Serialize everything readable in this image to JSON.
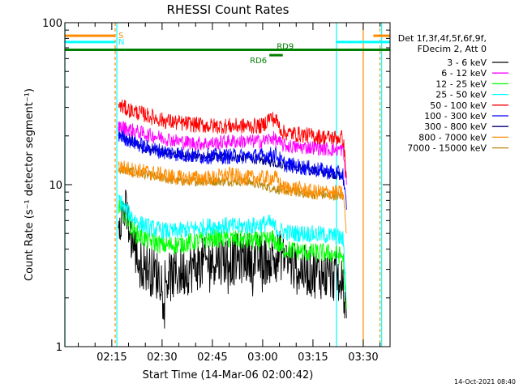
{
  "chart_data": {
    "type": "line",
    "title": "RHESSI Count Rates",
    "xlabel": "Start Time (14-Mar-06 02:00:42)",
    "ylabel": "Count Rate (s⁻¹ detector segment⁻¹)",
    "y_scale": "log",
    "ylim": [
      1,
      100
    ],
    "y_ticks": [
      "1",
      "10",
      "100"
    ],
    "xlim": [
      "02:01:00",
      "03:38:00"
    ],
    "x_ticks": [
      "02:15",
      "02:30",
      "02:45",
      "03:00",
      "03:15",
      "03:30"
    ],
    "legend_header": [
      "Det 1f,3f,4f,5f,6f,9f,",
      "FDecim 2, Att 0"
    ],
    "legend_position": "right",
    "footer_date": "14-Oct-2021 08:40",
    "series": [
      {
        "name": "3 - 6 keV",
        "color": "#000000",
        "x": [
          "02:17",
          "02:19",
          "02:21",
          "02:23",
          "02:27",
          "02:31",
          "02:36",
          "02:41",
          "02:46",
          "02:51",
          "02:56",
          "03:00",
          "03:03",
          "03:06",
          "03:10",
          "03:14",
          "03:18",
          "03:22",
          "03:24",
          "03:25"
        ],
        "y": [
          6.5,
          6.8,
          4.6,
          3.4,
          2.9,
          2.6,
          2.9,
          3.2,
          3.5,
          3.4,
          3.6,
          3.4,
          3.5,
          3.7,
          3.0,
          2.9,
          2.8,
          2.7,
          2.4,
          1.5
        ]
      },
      {
        "name": "6 - 12 keV",
        "color": "#ff00ff",
        "x": [
          "02:17",
          "02:20",
          "02:25",
          "02:30",
          "02:35",
          "02:40",
          "02:45",
          "02:50",
          "02:55",
          "03:00",
          "03:03",
          "03:06",
          "03:10",
          "03:15",
          "03:20",
          "03:24",
          "03:25"
        ],
        "y": [
          23.0,
          22.0,
          20.5,
          19.5,
          18.5,
          18.0,
          18.0,
          18.5,
          18.5,
          18.5,
          19.5,
          17.5,
          17.0,
          17.0,
          16.5,
          16.5,
          10.0
        ]
      },
      {
        "name": "12 - 25 keV",
        "color": "#00ff00",
        "x": [
          "02:17",
          "02:19",
          "02:22",
          "02:26",
          "02:31",
          "02:36",
          "02:41",
          "02:46",
          "02:51",
          "02:56",
          "03:00",
          "03:03",
          "03:06",
          "03:10",
          "03:14",
          "03:18",
          "03:22",
          "03:24",
          "03:25"
        ],
        "y": [
          7.5,
          6.5,
          5.0,
          4.5,
          4.2,
          4.3,
          4.5,
          4.7,
          4.6,
          4.5,
          4.5,
          4.6,
          4.0,
          3.9,
          3.8,
          3.8,
          3.7,
          3.6,
          1.7
        ]
      },
      {
        "name": "25 - 50 keV",
        "color": "#00ffff",
        "x": [
          "02:17",
          "02:19",
          "02:23",
          "02:28",
          "02:33",
          "02:38",
          "02:43",
          "02:48",
          "02:53",
          "02:58",
          "03:02",
          "03:05",
          "03:09",
          "03:13",
          "03:18",
          "03:22",
          "03:24",
          "03:25"
        ],
        "y": [
          8.3,
          7.0,
          5.8,
          5.3,
          5.1,
          5.3,
          5.5,
          5.6,
          5.5,
          5.6,
          5.8,
          5.2,
          5.0,
          5.0,
          4.9,
          4.8,
          4.6,
          2.0
        ]
      },
      {
        "name": "50 - 100 keV",
        "color": "#ff0000",
        "x": [
          "02:17",
          "02:20",
          "02:25",
          "02:30",
          "02:35",
          "02:40",
          "02:45",
          "02:50",
          "02:55",
          "03:00",
          "03:02",
          "03:04",
          "03:06",
          "03:10",
          "03:15",
          "03:20",
          "03:24",
          "03:25"
        ],
        "y": [
          31.0,
          29.0,
          27.0,
          25.0,
          24.0,
          23.5,
          23.0,
          23.0,
          23.0,
          23.0,
          26.0,
          25.0,
          21.0,
          20.5,
          20.0,
          19.5,
          19.5,
          11.0
        ]
      },
      {
        "name": "100 - 300 keV",
        "color": "#0000ff",
        "x": [
          "02:17",
          "02:20",
          "02:25",
          "02:30",
          "02:35",
          "02:40",
          "02:45",
          "02:50",
          "02:55",
          "03:00",
          "03:04",
          "03:06",
          "03:10",
          "03:15",
          "03:20",
          "03:24",
          "03:25"
        ],
        "y": [
          20.5,
          19.0,
          17.0,
          16.0,
          15.5,
          15.0,
          15.0,
          15.0,
          15.0,
          15.0,
          15.5,
          13.5,
          13.0,
          12.5,
          12.0,
          11.5,
          7.0
        ]
      },
      {
        "name": "300 - 800 keV",
        "color": "#00007f",
        "x": [
          "02:17",
          "02:25",
          "02:35",
          "02:45",
          "02:55",
          "03:05",
          "03:15",
          "03:24"
        ],
        "y": [
          20.0,
          16.8,
          15.2,
          14.8,
          14.8,
          13.5,
          12.3,
          11.3
        ]
      },
      {
        "name": "800 - 7000 keV",
        "color": "#ff8c00",
        "x": [
          "02:17",
          "02:20",
          "02:25",
          "02:30",
          "02:35",
          "02:40",
          "02:45",
          "02:50",
          "02:55",
          "03:00",
          "03:04",
          "03:06",
          "03:10",
          "03:15",
          "03:20",
          "03:24",
          "03:25"
        ],
        "y": [
          13.0,
          12.5,
          12.0,
          11.5,
          11.0,
          11.0,
          11.0,
          11.5,
          11.0,
          11.0,
          11.0,
          9.5,
          9.5,
          9.0,
          9.0,
          8.8,
          5.0
        ]
      },
      {
        "name": "7000 - 15000 keV",
        "color": "#b8860b",
        "x": [
          "02:17",
          "02:25",
          "02:35",
          "02:45",
          "02:55",
          "03:05",
          "03:15",
          "03:24"
        ],
        "y": [
          12.5,
          11.5,
          10.5,
          10.5,
          10.5,
          9.3,
          8.7,
          8.5
        ]
      }
    ],
    "annotations": [
      {
        "label": "S",
        "color": "#ff8c00",
        "y": 83,
        "x_start": "02:01:00",
        "x_end": "02:16:00"
      },
      {
        "label": "",
        "color": "#ff8c00",
        "y": 83,
        "x_start": "03:33:00",
        "x_end": "03:38:00"
      },
      {
        "label": "N",
        "color": "#00ffff",
        "y": 76,
        "x_start": "02:01:00",
        "x_end": "02:16:00"
      },
      {
        "label": "",
        "color": "#00ffff",
        "y": 76,
        "x_start": "03:22:00",
        "x_end": "03:38:00"
      },
      {
        "label": "",
        "color": "#008000",
        "y": 68,
        "x_start": "02:01:00",
        "x_end": "03:38:00"
      },
      {
        "label": "RD9",
        "color": "#008000",
        "y": 68,
        "x_start": "03:02:30",
        "x_end": "03:02:30"
      },
      {
        "label": "RD6",
        "color": "#008000",
        "y": 63,
        "x_start": "03:02:00",
        "x_end": "03:06:00"
      }
    ],
    "vertical_lines": [
      {
        "x": "02:01:00",
        "color": "#00ffff",
        "style": "solid"
      },
      {
        "x": "02:16:00",
        "color": "#ff8c00",
        "style": "dashed"
      },
      {
        "x": "02:16:30",
        "color": "#00ffff",
        "style": "solid"
      },
      {
        "x": "03:22:00",
        "color": "#00ffff",
        "style": "solid"
      },
      {
        "x": "03:30:00",
        "color": "#ff8c00",
        "style": "solid"
      },
      {
        "x": "03:35:00",
        "color": "#ff8c00",
        "style": "dashed"
      },
      {
        "x": "03:35:30",
        "color": "#00ffff",
        "style": "solid"
      }
    ],
    "grid": false
  }
}
